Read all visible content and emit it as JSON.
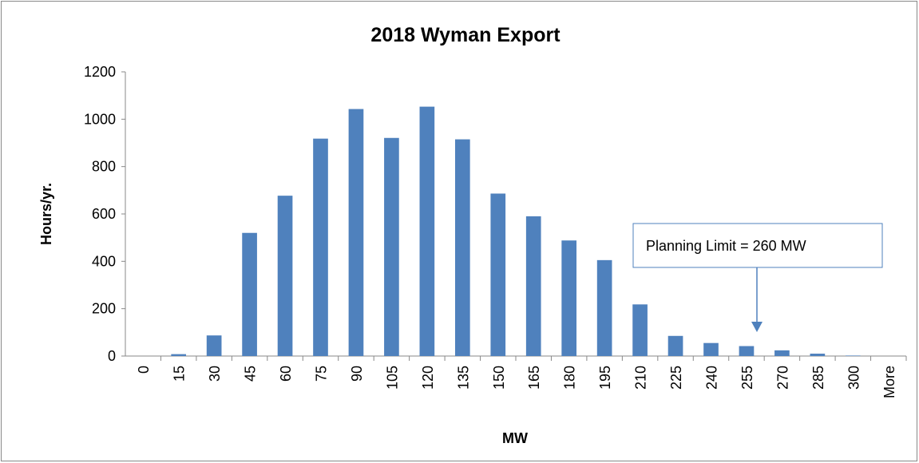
{
  "chart_data": {
    "type": "bar",
    "title": "2018 Wyman Export",
    "x_label": "MW",
    "y_label": "Hours/yr.",
    "annotation": "Planning Limit = 260 MW",
    "categories": [
      "0",
      "15",
      "30",
      "45",
      "60",
      "75",
      "90",
      "105",
      "120",
      "135",
      "150",
      "165",
      "180",
      "195",
      "210",
      "225",
      "240",
      "255",
      "270",
      "285",
      "300",
      "More"
    ],
    "values": [
      0,
      8,
      87,
      520,
      677,
      918,
      1043,
      921,
      1053,
      915,
      686,
      590,
      488,
      405,
      218,
      85,
      55,
      42,
      24,
      10,
      2,
      0
    ],
    "color": "#4f81bd",
    "ylim": [
      0,
      1200
    ],
    "yticks": [
      0,
      200,
      400,
      600,
      800,
      1000,
      1200
    ],
    "grid": false
  }
}
